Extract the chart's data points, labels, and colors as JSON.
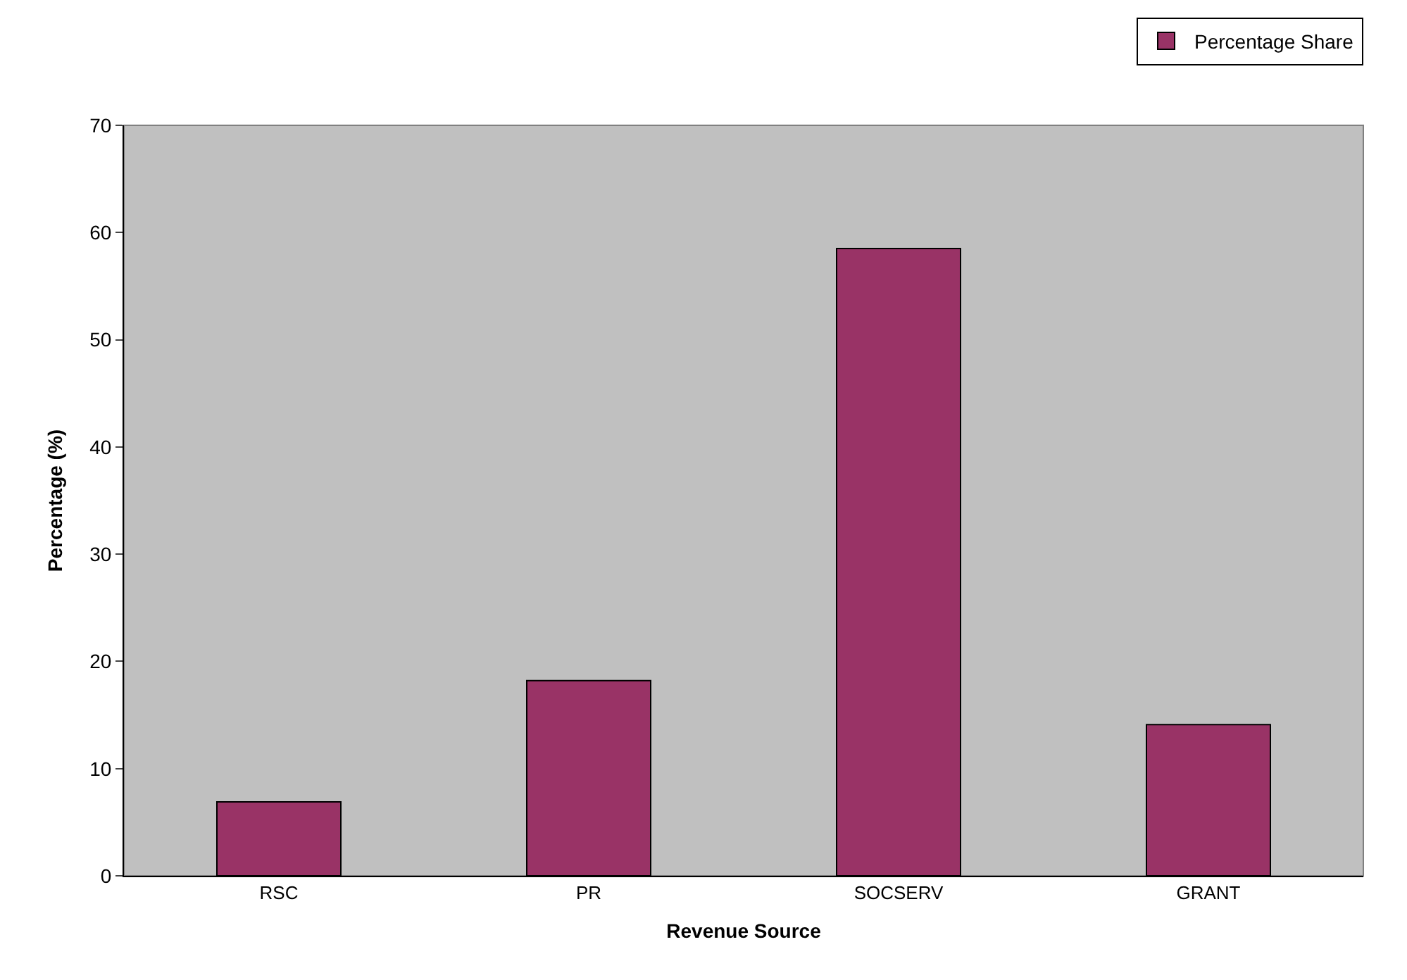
{
  "chart_data": {
    "type": "bar",
    "xlabel": "Revenue Source",
    "ylabel": "Percentage (%)",
    "categories": [
      "RSC",
      "PR",
      "SOCSERV",
      "GRANT"
    ],
    "series": [
      {
        "name": "Percentage Share",
        "color": "#993366",
        "values": [
          6.9,
          18.2,
          58.5,
          14.1
        ]
      }
    ],
    "ylim": [
      0,
      70
    ],
    "yticks": [
      0,
      10,
      20,
      30,
      40,
      50,
      60,
      70
    ],
    "grid": false,
    "legend": "top right"
  }
}
